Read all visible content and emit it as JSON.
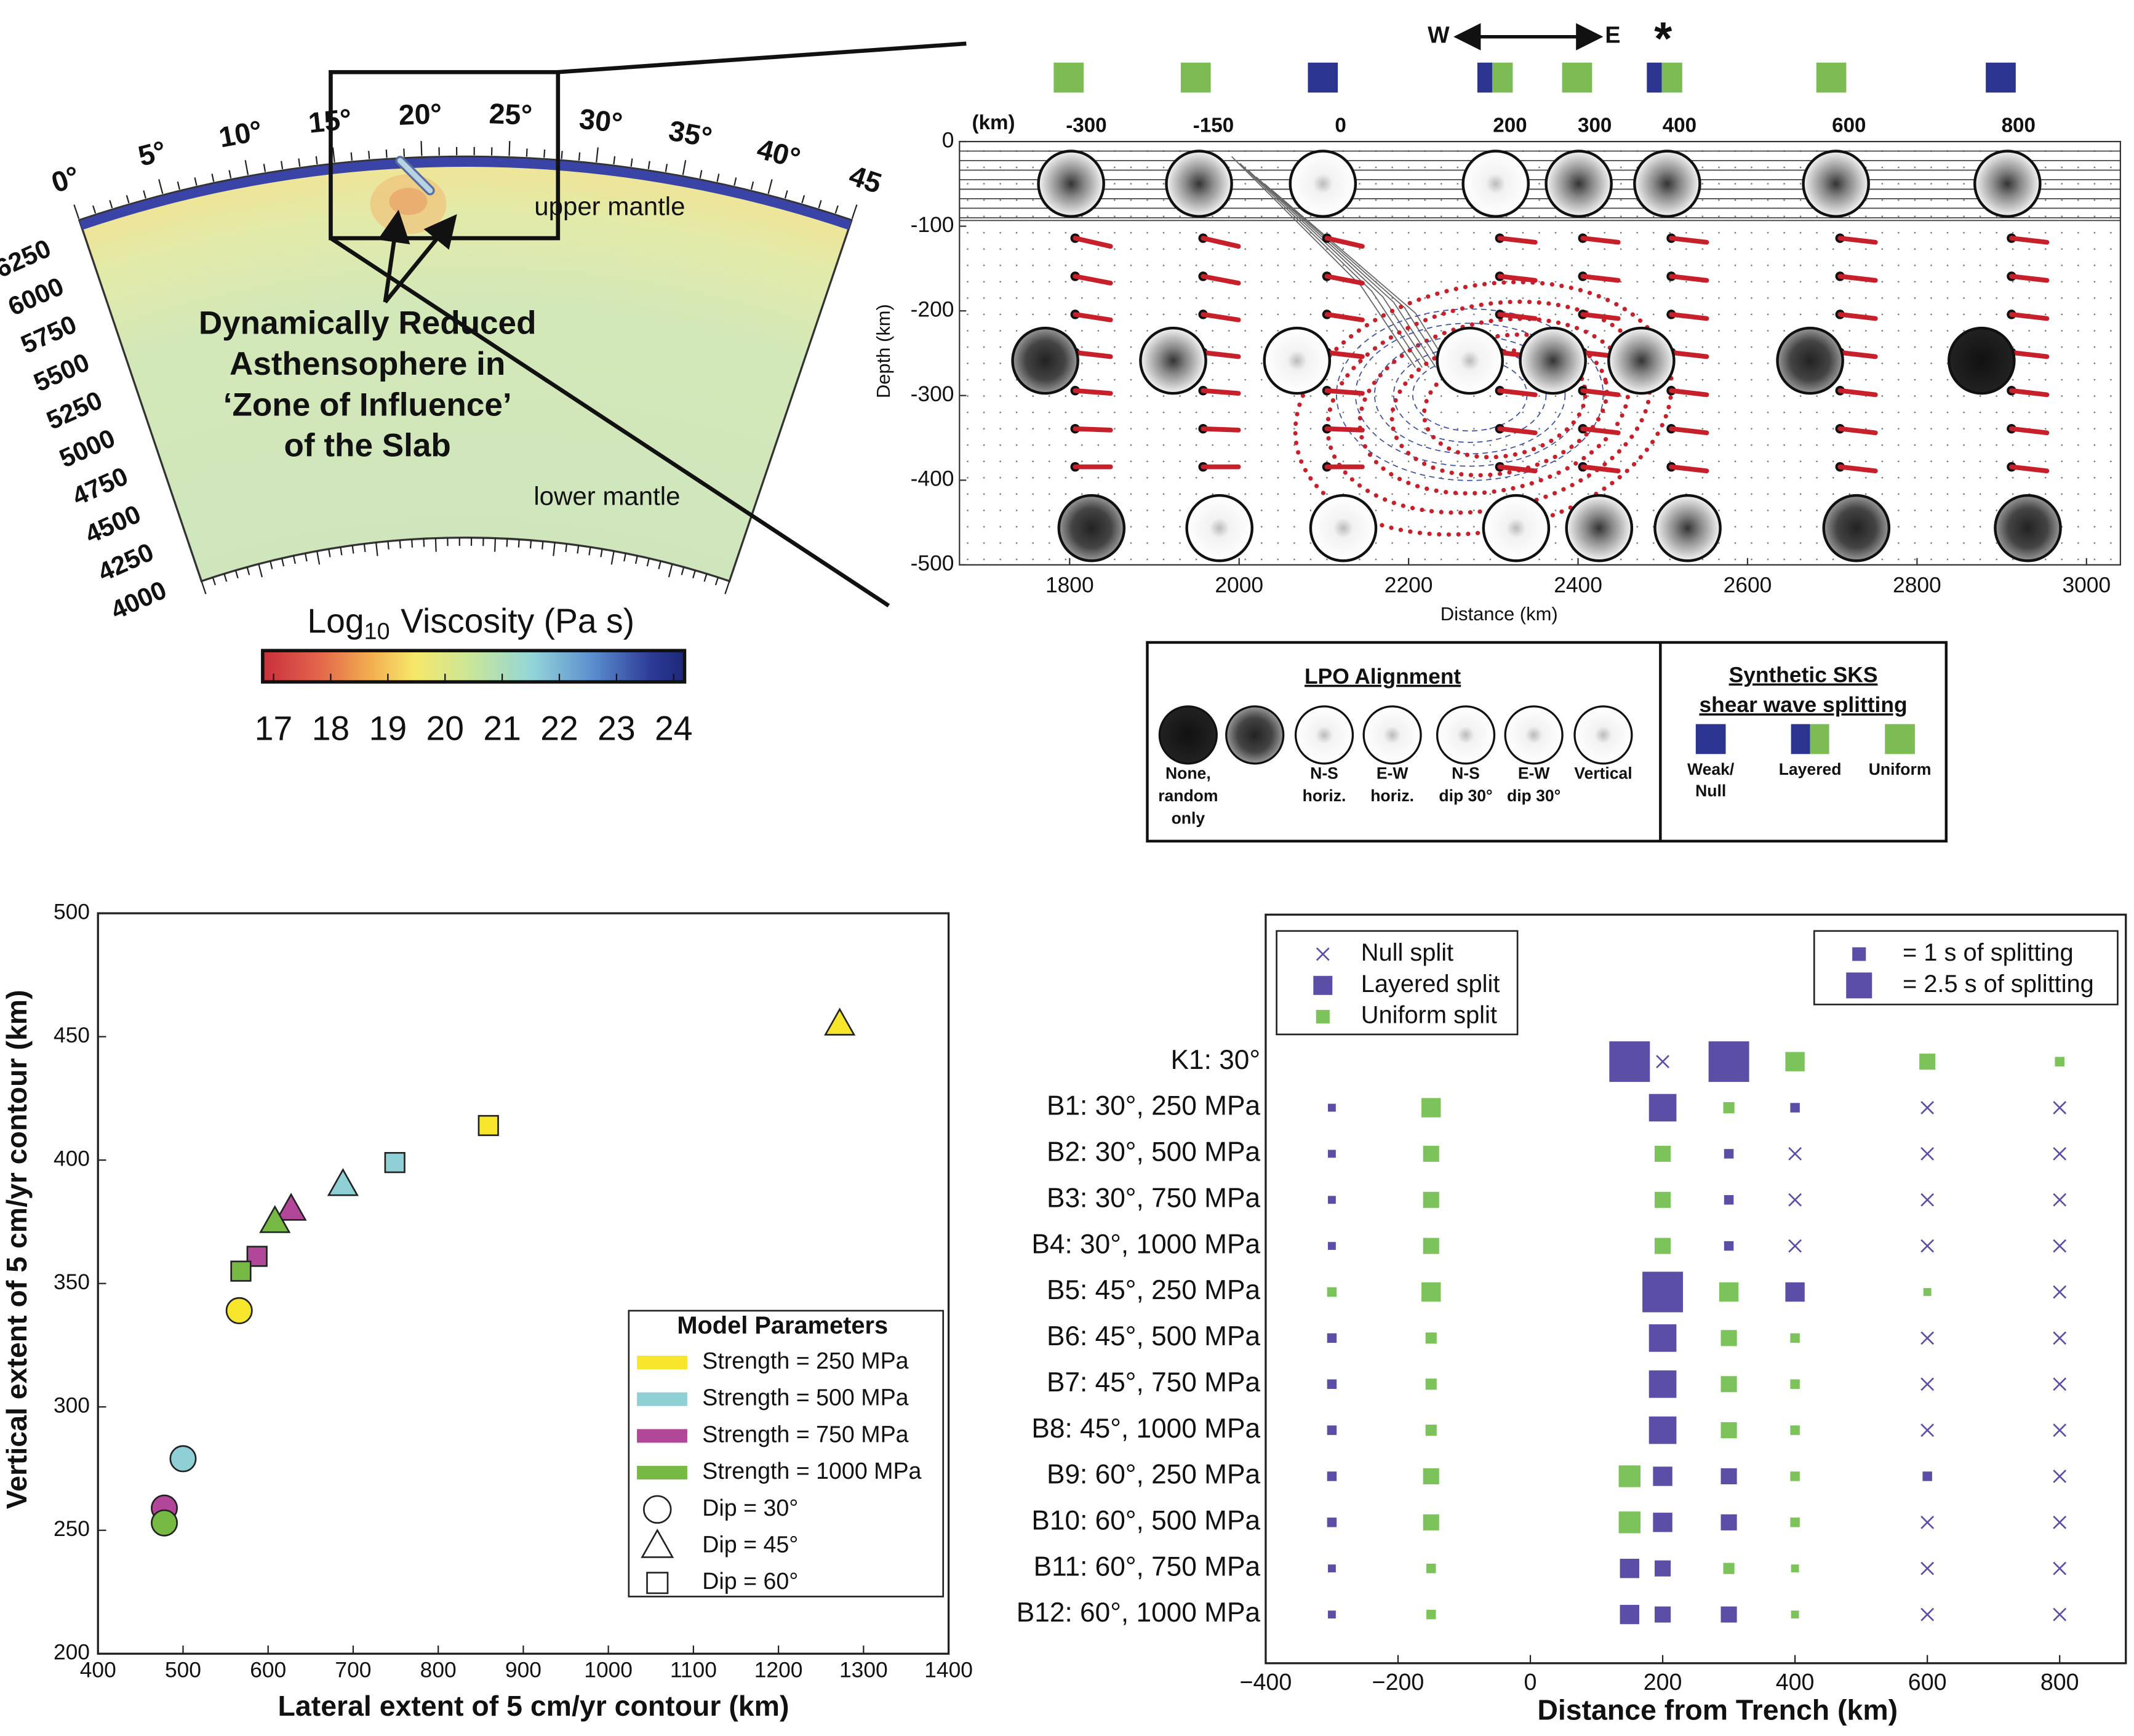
{
  "viscosity_panel": {
    "longitude_ticks": [
      "0°",
      "5°",
      "10°",
      "15°",
      "20°",
      "25°",
      "30°",
      "35°",
      "40°",
      "45"
    ],
    "radius_ticks": [
      6250,
      6000,
      5750,
      5500,
      5250,
      5000,
      4750,
      4500,
      4250,
      4000
    ],
    "labels": {
      "upper": "upper mantle",
      "lower": "lower mantle"
    },
    "annotation": [
      "Dynamically Reduced",
      "Asthensophere in",
      "‘Zone of Influence’",
      "of the Slab"
    ],
    "colorbar": {
      "title": {
        "base": "Log",
        "subscript": "10",
        "rest": "Viscosity  (Pa s)"
      },
      "ticks": [
        17,
        18,
        19,
        20,
        21,
        22,
        23,
        24
      ]
    }
  },
  "chart_data": [
    {
      "type": "section",
      "xlabel": "Distance (km)",
      "ylabel": "Depth (km)",
      "xlim": [
        1670,
        3040
      ],
      "xticks": [
        1800,
        2000,
        2200,
        2400,
        2600,
        2800,
        3000
      ],
      "ylim": [
        -500,
        0
      ],
      "yticks": [
        0,
        -100,
        -200,
        -300,
        -400,
        -500
      ],
      "direction": {
        "west": "W",
        "east": "E"
      },
      "marker": "*",
      "station_unit": "(km)",
      "stations": [
        -300,
        -150,
        0,
        200,
        300,
        400,
        600,
        800
      ],
      "station_splitting": [
        "uniform",
        "uniform",
        "weak",
        "layered",
        "uniform",
        "layered",
        "uniform",
        "weak"
      ],
      "splitting_colors": {
        "weak": "#2b3590",
        "uniform": "#7dbb55"
      },
      "lpo_legend": {
        "title": "LPO Alignment",
        "items": [
          [
            "None,",
            "random",
            "only"
          ],
          [
            "N-S",
            "horiz."
          ],
          [
            "E-W",
            "horiz."
          ],
          [
            "N-S",
            "dip 30°"
          ],
          [
            "E-W",
            "dip 30°"
          ],
          [
            "Vertical"
          ]
        ]
      },
      "sks_legend": {
        "title": [
          "Synthetic SKS",
          "shear wave splitting"
        ],
        "items": [
          {
            "label": [
              "Weak/",
              "Null"
            ],
            "kind": "weak"
          },
          {
            "label": [
              "Layered"
            ],
            "kind": "layered"
          },
          {
            "label": [
              "Uniform"
            ],
            "kind": "uniform"
          }
        ]
      }
    },
    {
      "type": "scatter",
      "xlabel": "Lateral extent of 5 cm/yr contour (km)",
      "ylabel": "Vertical extent of 5 cm/yr contour (km)",
      "xlim": [
        400,
        1400
      ],
      "xticks": [
        400,
        500,
        600,
        700,
        800,
        900,
        1000,
        1100,
        1200,
        1300,
        1400
      ],
      "ylim": [
        200,
        500
      ],
      "yticks": [
        200,
        250,
        300,
        350,
        400,
        450,
        500
      ],
      "legend_title": "Model Parameters",
      "series": [
        {
          "name": "Strength = 250 MPa",
          "color": "#f7e62c",
          "x": [
            566,
            1272,
            859
          ],
          "y": [
            339,
            455,
            414
          ],
          "markers": [
            "circle",
            "triangle",
            "square"
          ]
        },
        {
          "name": "Strength = 500 MPa",
          "color": "#8fd0d6",
          "x": [
            500,
            688,
            749
          ],
          "y": [
            279,
            390,
            399
          ],
          "markers": [
            "circle",
            "triangle",
            "square"
          ]
        },
        {
          "name": "Strength = 750 MPa",
          "color": "#b2479a",
          "x": [
            478,
            627,
            587
          ],
          "y": [
            259,
            380,
            361
          ],
          "markers": [
            "circle",
            "triangle",
            "square"
          ]
        },
        {
          "name": "Strength = 1000 MPa",
          "color": "#76ba43",
          "x": [
            478,
            608,
            568
          ],
          "y": [
            253,
            375,
            355
          ],
          "markers": [
            "circle",
            "triangle",
            "square"
          ]
        }
      ],
      "marker_legend": [
        {
          "name": "Dip = 30°",
          "marker": "circle"
        },
        {
          "name": "Dip = 45°",
          "marker": "triangle"
        },
        {
          "name": "Dip = 60°",
          "marker": "square"
        }
      ]
    },
    {
      "type": "splitting",
      "xlabel": "Distance from Trench (km)",
      "xlim": [
        -400,
        900
      ],
      "xticks": [
        {
          "value": -400,
          "label": "−400"
        },
        {
          "value": -200,
          "label": "−200"
        },
        0,
        200,
        400,
        600,
        800
      ],
      "x": [
        -300,
        -150,
        150,
        200,
        300,
        400,
        600,
        800
      ],
      "categories": [
        "K1: 30°",
        "B1: 30°, 250 MPa",
        "B2: 30°, 500 MPa",
        "B3: 30°, 750 MPa",
        "B4: 30°, 1000 MPa",
        "B5: 45°, 250 MPa",
        "B6: 45°, 500 MPa",
        "B7: 45°, 750 MPa",
        "B8: 45°, 1000 MPa",
        "B9: 60°, 250 MPa",
        "B10: 60°, 500 MPa",
        "B11: 60°, 750 MPa",
        "B12: 60°, 1000 MPa"
      ],
      "series": [
        {
          "name": "Null split",
          "marker": "x",
          "color": "#5a4ea6",
          "values": [
            [
              null,
              null,
              null,
              0,
              null,
              null,
              null,
              null
            ],
            [
              null,
              null,
              null,
              null,
              null,
              null,
              0,
              0
            ],
            [
              null,
              null,
              null,
              null,
              null,
              0,
              0,
              0
            ],
            [
              null,
              null,
              null,
              null,
              null,
              0,
              0,
              0
            ],
            [
              null,
              null,
              null,
              null,
              null,
              0,
              0,
              0
            ],
            [
              null,
              null,
              null,
              null,
              null,
              null,
              null,
              0
            ],
            [
              null,
              null,
              null,
              null,
              null,
              null,
              0,
              0
            ],
            [
              null,
              null,
              null,
              null,
              null,
              null,
              0,
              0
            ],
            [
              null,
              null,
              null,
              null,
              null,
              null,
              0,
              0
            ],
            [
              null,
              null,
              null,
              null,
              null,
              null,
              null,
              0
            ],
            [
              null,
              null,
              null,
              null,
              null,
              null,
              0,
              0
            ],
            [
              null,
              null,
              null,
              null,
              null,
              null,
              0,
              0
            ],
            [
              null,
              null,
              null,
              null,
              null,
              null,
              0,
              0
            ]
          ]
        },
        {
          "name": "Layered split",
          "marker": "square",
          "color": "#5a4ea6",
          "values": [
            [
              null,
              null,
              4.3,
              null,
              4.3,
              null,
              null,
              null
            ],
            [
              0.3,
              null,
              null,
              2.7,
              null,
              0.5,
              null,
              null
            ],
            [
              0.3,
              null,
              null,
              null,
              0.5,
              null,
              null,
              null
            ],
            [
              0.3,
              null,
              null,
              null,
              0.5,
              null,
              null,
              null
            ],
            [
              0.3,
              null,
              null,
              null,
              0.5,
              null,
              null,
              null
            ],
            [
              null,
              null,
              null,
              4.3,
              null,
              1.7,
              null,
              null
            ],
            [
              0.5,
              null,
              null,
              2.7,
              null,
              null,
              null,
              null
            ],
            [
              0.5,
              null,
              null,
              2.7,
              null,
              null,
              null,
              null
            ],
            [
              0.5,
              null,
              null,
              2.7,
              null,
              null,
              null,
              null
            ],
            [
              0.5,
              null,
              null,
              1.7,
              1.3,
              null,
              0.5,
              null
            ],
            [
              0.5,
              null,
              null,
              1.7,
              1.3,
              null,
              null,
              null
            ],
            [
              0.3,
              null,
              1.7,
              1.3,
              null,
              null,
              null,
              null
            ],
            [
              0.3,
              null,
              1.7,
              1.3,
              1.3,
              null,
              null,
              null
            ]
          ]
        },
        {
          "name": "Uniform split",
          "marker": "square",
          "color": "#7dc35b",
          "values": [
            [
              null,
              null,
              null,
              null,
              null,
              1.7,
              1.3,
              0.5
            ],
            [
              null,
              1.7,
              null,
              null,
              0.7,
              null,
              null,
              null
            ],
            [
              null,
              1.3,
              null,
              1.3,
              null,
              null,
              null,
              null
            ],
            [
              null,
              1.3,
              null,
              1.3,
              null,
              null,
              null,
              null
            ],
            [
              null,
              1.3,
              null,
              1.3,
              null,
              null,
              null,
              null
            ],
            [
              0.5,
              1.7,
              null,
              null,
              1.7,
              null,
              0.3,
              null
            ],
            [
              null,
              0.7,
              null,
              null,
              1.3,
              0.5,
              null,
              null
            ],
            [
              null,
              0.7,
              null,
              null,
              1.3,
              0.5,
              null,
              null
            ],
            [
              null,
              0.7,
              null,
              null,
              1.3,
              0.5,
              null,
              null
            ],
            [
              null,
              1.3,
              2.0,
              null,
              null,
              0.5,
              null,
              null
            ],
            [
              null,
              1.3,
              2.0,
              null,
              null,
              0.5,
              null,
              null
            ],
            [
              null,
              0.5,
              null,
              null,
              0.7,
              0.3,
              null,
              null
            ],
            [
              null,
              0.5,
              null,
              null,
              null,
              0.3,
              null,
              null
            ]
          ]
        }
      ],
      "size_legend": [
        {
          "value": 1,
          "label": "= 1 s of splitting"
        },
        {
          "value": 2.5,
          "label": "= 2.5 s of splitting"
        }
      ]
    }
  ]
}
